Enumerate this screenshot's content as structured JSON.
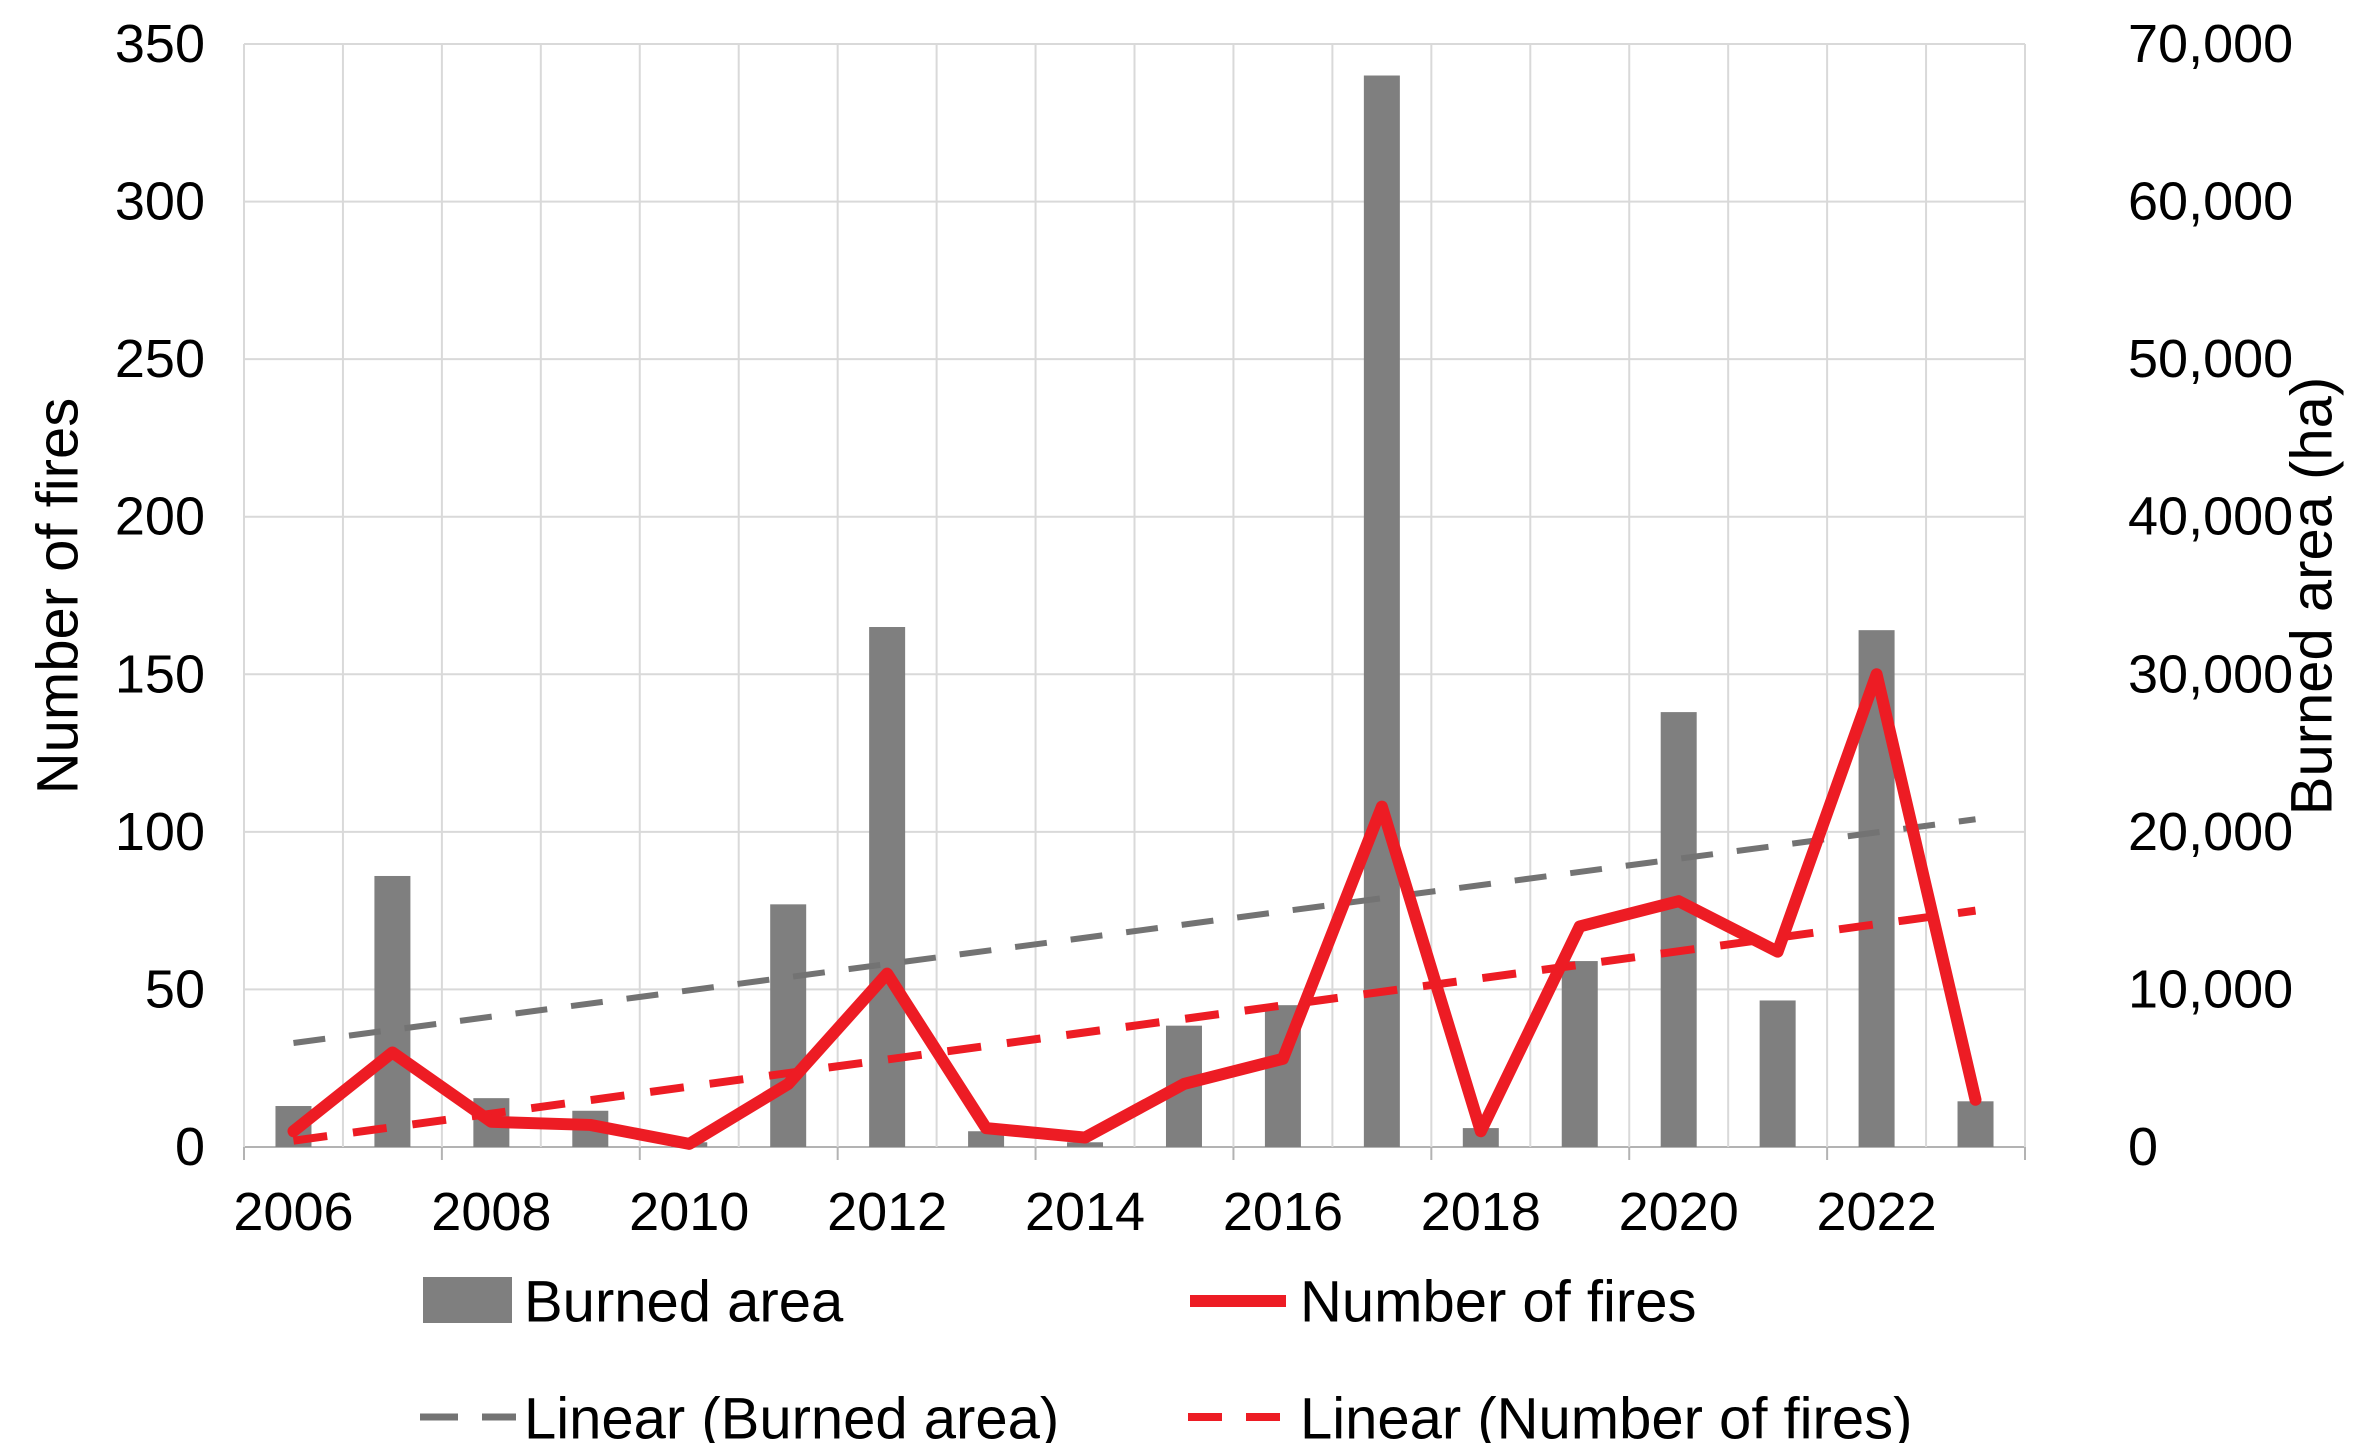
{
  "figure": {
    "kind": "dual-axis combo chart of wildfire statistics 2006-2023"
  },
  "legend": {
    "burned_area_label": "Burned area",
    "fires_label": "Number of fires",
    "linear_burned_label": "Linear (Burned area)",
    "linear_fires_label": "Linear (Number of fires)"
  },
  "colors": {
    "bar": "#7f7f7f",
    "line": "#ed1c24",
    "trend_burned": "#737373",
    "trend_fires": "#ed1c24",
    "gridline": "#d9d9d9",
    "axis_line": "#b3b3b3",
    "text": "#000000"
  },
  "chart_data": {
    "type": "bar",
    "subtype": "combo bar + line, dual y-axes, with linear trendlines",
    "categories": [
      2006,
      2007,
      2008,
      2009,
      2010,
      2011,
      2012,
      2013,
      2014,
      2015,
      2016,
      2017,
      2018,
      2019,
      2020,
      2021,
      2022,
      2023
    ],
    "series": [
      {
        "name": "Burned area",
        "type": "bar",
        "axis": "right",
        "unit": "ha",
        "values": [
          2600,
          17200,
          3100,
          2300,
          300,
          15400,
          33000,
          1000,
          300,
          7700,
          9000,
          68000,
          1200,
          11800,
          27600,
          9300,
          32800,
          2900
        ]
      },
      {
        "name": "Number of fires",
        "type": "line",
        "axis": "left",
        "unit": "fires",
        "values": [
          5,
          30,
          8,
          7,
          1,
          20,
          55,
          6,
          3,
          20,
          28,
          108,
          5,
          70,
          78,
          62,
          150,
          15
        ]
      },
      {
        "name": "Linear (Burned area)",
        "type": "linear-trendline",
        "axis": "right",
        "start_value": 6600,
        "end_value": 20800
      },
      {
        "name": "Linear (Number of fires)",
        "type": "linear-trendline",
        "axis": "left",
        "start_value": 2,
        "end_value": 75
      }
    ],
    "left_axis": {
      "title": "Number of fires",
      "min": 0,
      "max": 350,
      "step": 50,
      "tick_labels": [
        "0",
        "50",
        "100",
        "150",
        "200",
        "250",
        "300",
        "350"
      ]
    },
    "right_axis": {
      "title": "Burned area (ha)",
      "min": 0,
      "max": 70000,
      "step": 10000,
      "tick_labels": [
        "0",
        "10,000",
        "20,000",
        "30,000",
        "40,000",
        "50,000",
        "60,000",
        "70,000"
      ]
    },
    "x_axis": {
      "tick_labels": [
        "2006",
        "2008",
        "2010",
        "2012",
        "2014",
        "2016",
        "2018",
        "2020",
        "2022"
      ],
      "label_interval": 2
    },
    "grid": "horizontal and vertical light gray gridlines on",
    "legend_position": "bottom, two rows"
  }
}
